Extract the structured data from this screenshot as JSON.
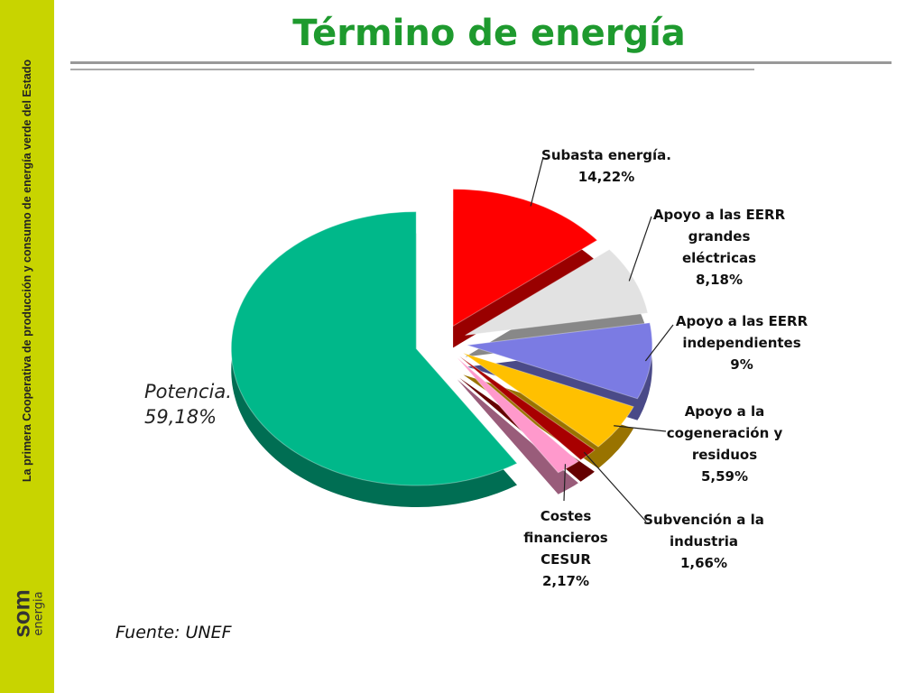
{
  "sidebar": {
    "tagline": "La primera Cooperativa de producción y consumo de energía verde del Estado",
    "logo": "som",
    "logo_sub": "energia"
  },
  "chart_data": {
    "type": "pie",
    "title": "Término de energía",
    "categories": [
      "Subasta energía.",
      "Apoyo a las EERR grandes eléctricas",
      "Apoyo a las EERR independientes",
      "Apoyo a la cogeneración y residuos",
      "Subvención a la industria",
      "Costes financieros CESUR",
      "Potencia."
    ],
    "values": [
      14.22,
      8.18,
      9,
      5.59,
      1.66,
      2.17,
      59.18
    ],
    "value_labels": [
      "14,22%",
      "8,18%",
      "9%",
      "5,59%",
      "1,66%",
      "2,17%",
      "59,18%"
    ],
    "colors": [
      "#ff0000",
      "#e2e2e2",
      "#7b7be3",
      "#ffc000",
      "#a80000",
      "#ff99cc",
      "#00b88a"
    ],
    "source": "Fuente: UNEF"
  }
}
